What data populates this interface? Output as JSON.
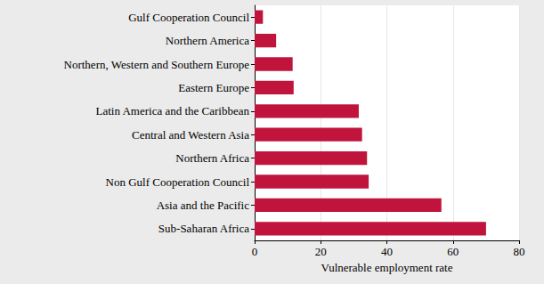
{
  "chart_data": {
    "type": "bar",
    "orientation": "horizontal",
    "x_label": "Vulnerable employment rate",
    "categories": [
      "Gulf Cooperation Council",
      "Northern America",
      "Northern, Western and Southern Europe",
      "Eastern Europe",
      "Latin America and the Caribbean",
      "Central and Western Asia",
      "Northern Africa",
      "Non Gulf Cooperation Council",
      "Asia and the Pacific",
      "Sub-Saharan Africa"
    ],
    "values": [
      2.5,
      6.5,
      11.5,
      11.8,
      31.5,
      32.5,
      34,
      34.5,
      56.5,
      70
    ],
    "color": "#c0143c",
    "xlim": [
      0,
      80
    ],
    "xticks": [
      0,
      20,
      40,
      60,
      80
    ],
    "grid": true
  }
}
